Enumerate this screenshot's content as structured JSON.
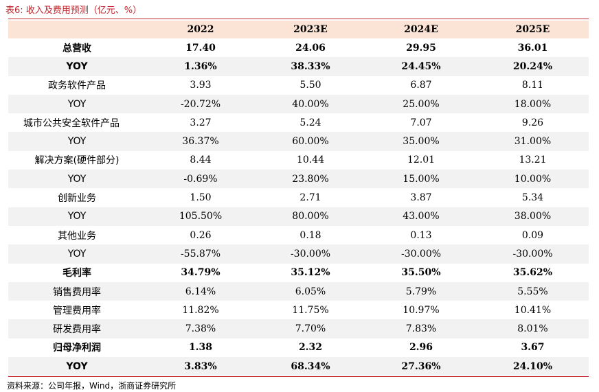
{
  "title": "表6:  收入及费用预测（亿元、%）",
  "columns": [
    "",
    "2022",
    "2023E",
    "2024E",
    "2025E"
  ],
  "rows": [
    {
      "label": "总营收",
      "values": [
        "17.40",
        "24.06",
        "29.95",
        "36.01"
      ],
      "bold": true,
      "shade": false,
      "indent": false
    },
    {
      "label": "YOY",
      "values": [
        "1.36%",
        "38.33%",
        "24.45%",
        "20.24%"
      ],
      "bold": true,
      "shade": true,
      "indent": false
    },
    {
      "label": "政务软件产品",
      "values": [
        "3.93",
        "5.50",
        "6.87",
        "8.11"
      ],
      "bold": false,
      "shade": false,
      "indent": false
    },
    {
      "label": "YOY",
      "values": [
        "-20.72%",
        "40.00%",
        "25.00%",
        "18.00%"
      ],
      "bold": false,
      "shade": true,
      "indent": false
    },
    {
      "label": "城市公共安全软件产品",
      "values": [
        "3.27",
        "5.24",
        "7.07",
        "9.26"
      ],
      "bold": false,
      "shade": false,
      "indent": true
    },
    {
      "label": "YOY",
      "values": [
        "36.37%",
        "60.00%",
        "35.00%",
        "31.00%"
      ],
      "bold": false,
      "shade": true,
      "indent": false
    },
    {
      "label": "解决方案(硬件部分)",
      "values": [
        "8.44",
        "10.44",
        "12.01",
        "13.21"
      ],
      "bold": false,
      "shade": false,
      "indent": false
    },
    {
      "label": "YOY",
      "values": [
        "-0.69%",
        "23.80%",
        "15.00%",
        "10.00%"
      ],
      "bold": false,
      "shade": true,
      "indent": false
    },
    {
      "label": "创新业务",
      "values": [
        "1.50",
        "2.71",
        "3.87",
        "5.34"
      ],
      "bold": false,
      "shade": false,
      "indent": false
    },
    {
      "label": "YOY",
      "values": [
        "105.50%",
        "80.00%",
        "43.00%",
        "38.00%"
      ],
      "bold": false,
      "shade": true,
      "indent": false
    },
    {
      "label": "其他业务",
      "values": [
        "0.26",
        "0.18",
        "0.13",
        "0.09"
      ],
      "bold": false,
      "shade": false,
      "indent": false
    },
    {
      "label": "YOY",
      "values": [
        "-55.87%",
        "-30.00%",
        "-30.00%",
        "-30.00%"
      ],
      "bold": false,
      "shade": true,
      "indent": false
    },
    {
      "label": "毛利率",
      "values": [
        "34.79%",
        "35.12%",
        "35.50%",
        "35.62%"
      ],
      "bold": true,
      "shade": false,
      "indent": false
    },
    {
      "label": "销售费用率",
      "values": [
        "6.14%",
        "6.05%",
        "5.79%",
        "5.55%"
      ],
      "bold": false,
      "shade": true,
      "indent": false
    },
    {
      "label": "管理费用率",
      "values": [
        "11.82%",
        "11.75%",
        "10.97%",
        "10.41%"
      ],
      "bold": false,
      "shade": false,
      "indent": false
    },
    {
      "label": "研发费用率",
      "values": [
        "7.38%",
        "7.70%",
        "7.83%",
        "8.01%"
      ],
      "bold": false,
      "shade": true,
      "indent": false
    },
    {
      "label": "归母净利润",
      "values": [
        "1.38",
        "2.32",
        "2.96",
        "3.67"
      ],
      "bold": true,
      "shade": false,
      "indent": false
    },
    {
      "label": "YOY",
      "values": [
        "3.83%",
        "68.34%",
        "27.36%",
        "24.10%"
      ],
      "bold": true,
      "shade": true,
      "indent": false
    }
  ],
  "source": "资料来源：公司年报，Wind，浙商证券研究所"
}
